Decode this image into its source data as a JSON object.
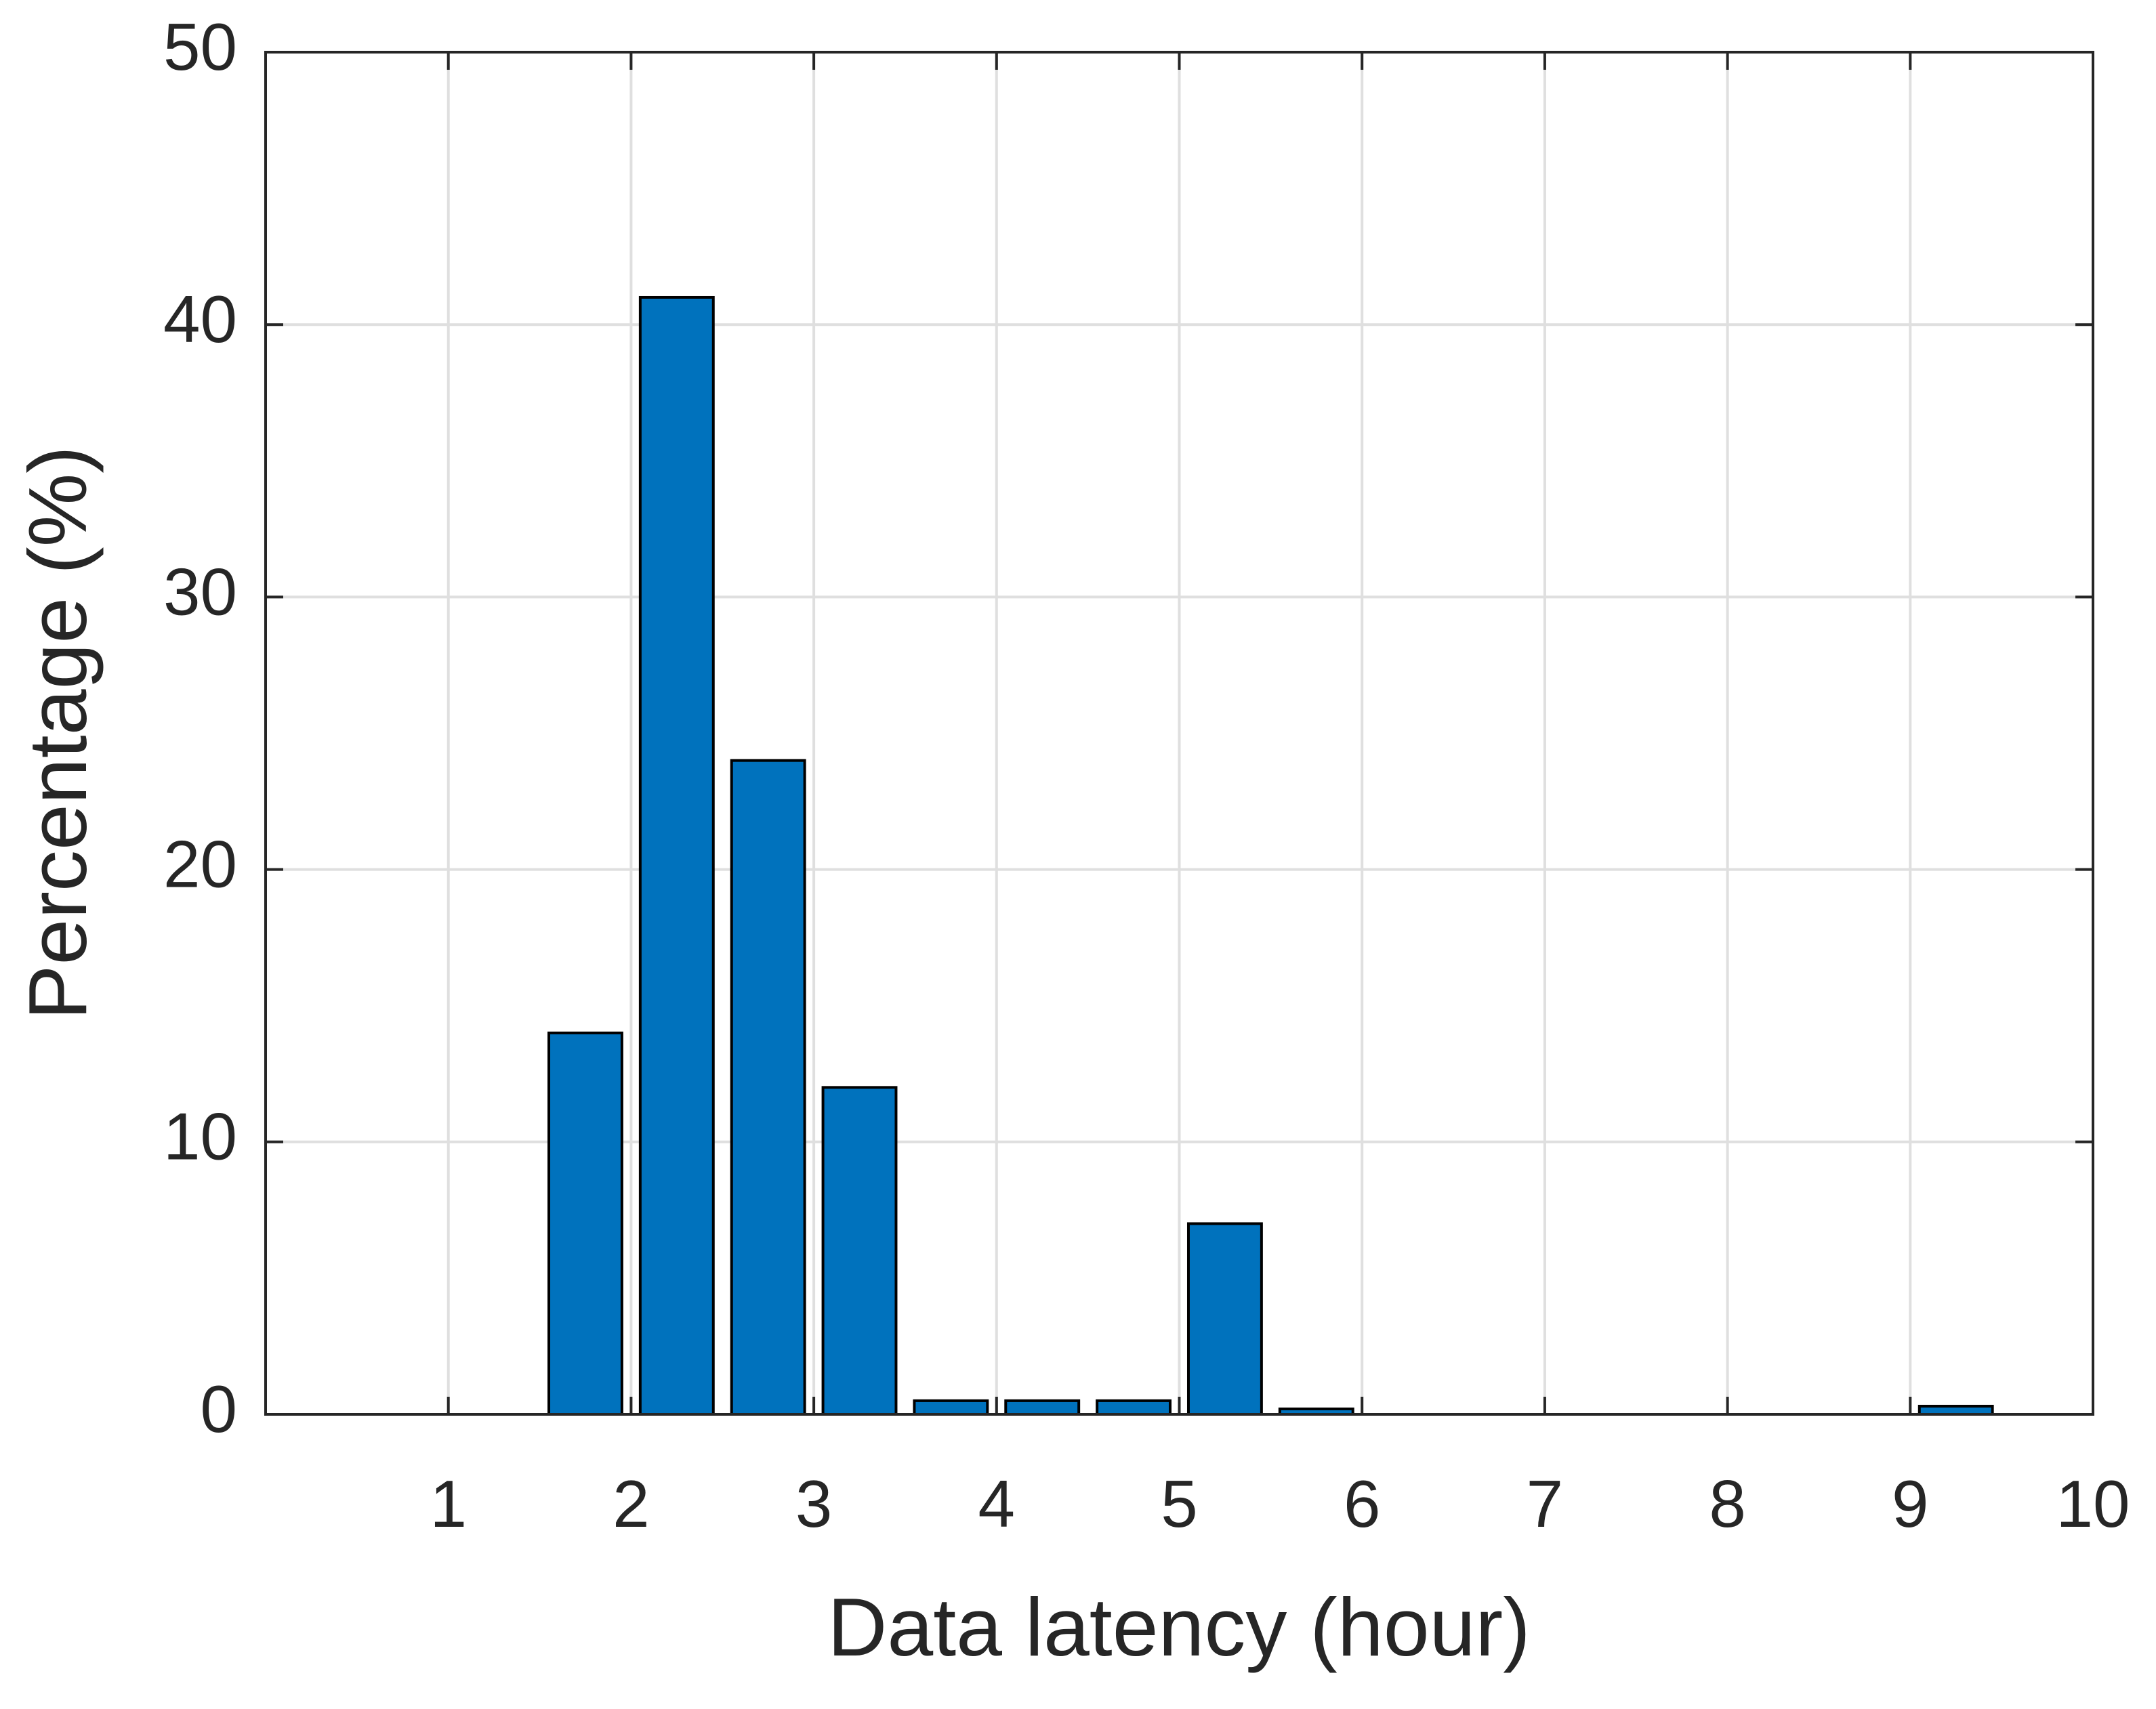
{
  "chart_data": {
    "type": "bar",
    "x": [
      1.75,
      2.25,
      2.75,
      3.25,
      3.75,
      4.25,
      4.75,
      5.25,
      5.75,
      9.25
    ],
    "values": [
      14,
      41,
      24,
      12,
      0.5,
      0.5,
      0.5,
      7,
      0.2,
      0.3
    ],
    "color": "#0072bd",
    "xlabel": "Data latency (hour)",
    "ylabel": "Percentage (%)",
    "xlim": [
      0,
      10
    ],
    "xticks": [
      1,
      2,
      3,
      4,
      5,
      6,
      7,
      8,
      9,
      10
    ],
    "ylim": [
      0,
      50
    ],
    "yticks": [
      0,
      10,
      20,
      30,
      40,
      50
    ],
    "grid": true
  }
}
